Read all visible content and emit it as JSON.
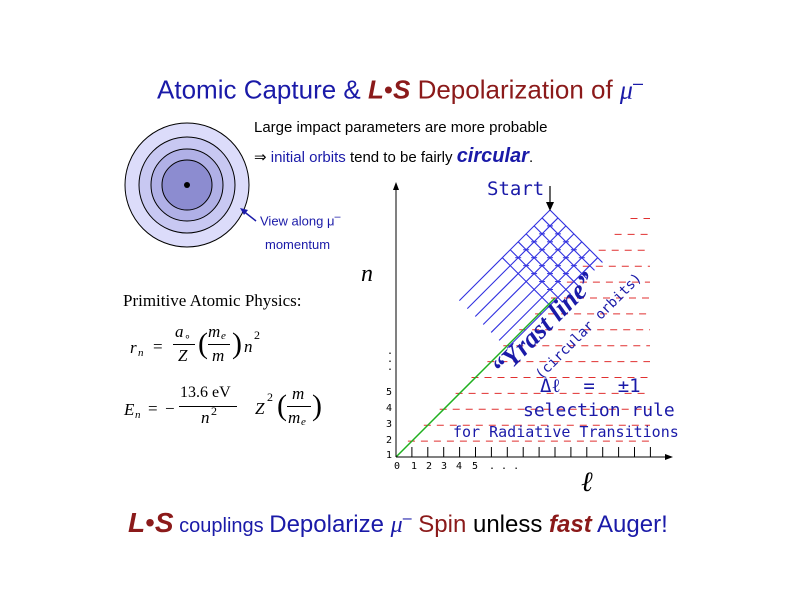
{
  "title": {
    "part1": "Atomic Capture & ",
    "ls_l": "L",
    "ls_dot": "•",
    "ls_s": "S",
    "part2": " Depolarization  of ",
    "mu": "μ",
    "minus": "–"
  },
  "subtitle": {
    "line1": "Large impact parameters are more probable",
    "arrow": "⇒",
    "line2_blue": " initial orbits",
    "line2_rest": " tend to be fairly ",
    "circular": "circular",
    "period": "."
  },
  "atom_label": {
    "line1": "View along μ",
    "minus": "–",
    "line2": "momentum"
  },
  "primitive": {
    "heading": "Primitive Atomic Physics:",
    "rn_lhs": "r",
    "rn_sub": "n",
    "eq_sign": "=",
    "a0": "a",
    "a0_sub": "∘",
    "Z": "Z",
    "me": "m",
    "me_sub": "e",
    "m": "m",
    "n": "n",
    "sq": "2",
    "en_lhs": "E",
    "en_sub": "n",
    "minus": "−",
    "ev": "13.6 eV",
    "n2": "n",
    "Z2": "Z",
    "open": "(",
    "close": ")"
  },
  "diagram": {
    "start_label": "Start",
    "n_axis": "n",
    "l_axis": "ℓ",
    "n_ticks": [
      "1",
      "2",
      "3",
      "4",
      "5"
    ],
    "n_dots": ".",
    "l_ticks": [
      "0",
      "1",
      "2",
      "3",
      "4",
      "5",
      ". . ."
    ],
    "yrast": "“Yrast line”",
    "circular_orbits": "(circular orbits)",
    "delta_l": "Δℓ  =  ±1",
    "selection_rule": "selection rule",
    "for_radiative": "for Radiative Transitions",
    "colors": {
      "levels": "#e03030",
      "transitions": "#3030e0",
      "yrast_line": "#20b020",
      "axis": "#000000",
      "text_blue": "#1a1aa8"
    }
  },
  "bottom": {
    "ls_l": "L",
    "ls_dot": "•",
    "ls_s": "S",
    "couplings": " couplings ",
    "depolarize": "Depolarize ",
    "mu": "μ",
    "minus": "–",
    "spin": " Spin ",
    "unless": "unless ",
    "fast": "fast",
    "auger": " Auger!"
  },
  "style_colors": {
    "title_red": "#8b1a1a",
    "blue": "#1a1aa8",
    "atom_outer": "#dcdcfa",
    "atom_mid": "#b8b8ec",
    "atom_inner": "#9090d0",
    "atom_core": "#505090"
  }
}
